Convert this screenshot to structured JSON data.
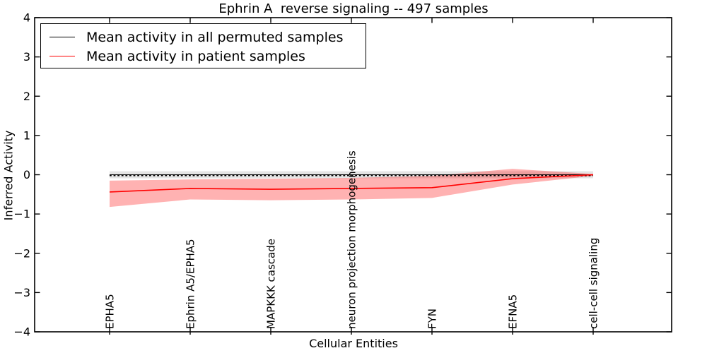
{
  "chart_data": {
    "type": "line",
    "title": "Ephrin A  reverse signaling -- 497 samples",
    "xlabel": "Cellular Entities",
    "ylabel": "Inferred Activity",
    "ylim": [
      -4,
      4
    ],
    "grid": false,
    "legend_position": "upper left",
    "ytick_values": [
      4,
      3,
      2,
      1,
      0,
      -1,
      -2,
      -3,
      -4
    ],
    "ytick_labels": [
      "4",
      "3",
      "2",
      "1",
      "0",
      "−1",
      "−2",
      "−3",
      "−4"
    ],
    "categories": [
      "EPHA5",
      "Ephrin A5/EPHA5",
      "MAPKKK cascade",
      "neuron projection morphogenesis",
      "FYN",
      "EFNA5",
      "cell-cell signaling"
    ],
    "zero_line": {
      "value": 0,
      "style": "dashed",
      "color": "#000000"
    },
    "series": [
      {
        "name": "Mean activity in all permuted samples",
        "color": "#000000",
        "line_width": 1.1,
        "values": [
          0,
          0,
          0,
          0,
          0,
          0,
          0
        ],
        "band_upper": [
          0.09,
          0.09,
          0.09,
          0.09,
          0.09,
          0.09,
          0.09
        ],
        "band_lower": [
          -0.09,
          -0.09,
          -0.09,
          -0.09,
          -0.09,
          -0.09,
          -0.09
        ],
        "band_color": "#000000",
        "band_opacity": 0.1
      },
      {
        "name": "Mean activity in patient samples",
        "color": "#ff0000",
        "line_width": 1.6,
        "values": [
          -0.44,
          -0.35,
          -0.37,
          -0.35,
          -0.33,
          -0.1,
          0.0
        ],
        "band_upper": [
          -0.15,
          -0.12,
          -0.1,
          -0.08,
          -0.03,
          0.15,
          0.02
        ],
        "band_lower": [
          -0.82,
          -0.63,
          -0.65,
          -0.63,
          -0.59,
          -0.25,
          -0.03
        ],
        "band_color": "#ff0000",
        "band_opacity": 0.3
      }
    ]
  }
}
